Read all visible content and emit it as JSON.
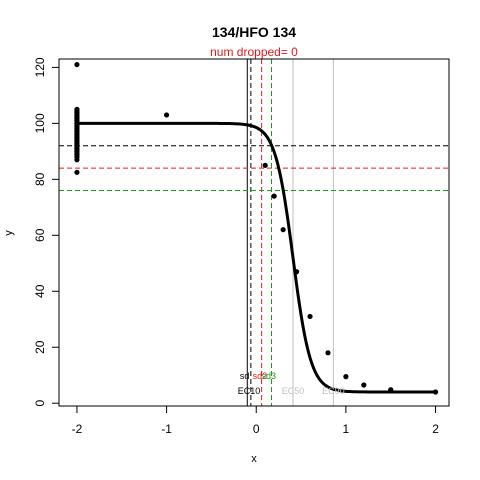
{
  "chart_data": {
    "type": "scatter",
    "title": "134/HFO 134",
    "subtitle": "num dropped= 0",
    "xlabel": "x",
    "ylabel": "y",
    "xlim": [
      -2.2,
      2.15
    ],
    "ylim": [
      -1,
      123
    ],
    "xticks": [
      -2,
      -1,
      0,
      1,
      2
    ],
    "yticks": [
      0,
      20,
      40,
      60,
      80,
      100,
      120
    ],
    "fit_curve": {
      "model": "logistic",
      "top": 100,
      "bottom": 4,
      "ec50": 0.41,
      "hill": 4.4,
      "x_range": [
        -2,
        2
      ]
    },
    "points": {
      "x": [
        -2,
        -2,
        -2,
        -2,
        -2,
        -2,
        -2,
        -2,
        -2,
        -2,
        -2,
        -2,
        -2,
        -2,
        -2,
        -2,
        -2,
        -2,
        -2,
        -2,
        -2,
        -1,
        0.1,
        0.2,
        0.3,
        0.45,
        0.6,
        0.8,
        1.0,
        1.2,
        1.5,
        2.0
      ],
      "y": [
        82.5,
        87,
        88,
        89,
        90,
        91,
        92,
        93,
        94,
        95,
        96,
        97,
        98,
        99,
        100,
        101,
        102,
        103,
        104,
        105,
        121,
        103,
        85,
        74,
        62,
        47,
        31,
        18,
        9.5,
        6.5,
        4.8,
        4
      ]
    },
    "hlines": [
      {
        "name": "sd",
        "y": 92,
        "color": "#000000"
      },
      {
        "name": "sd2",
        "y": 84,
        "color": "#e31a1c"
      },
      {
        "name": "sd3",
        "y": 76,
        "color": "#1a9d1a"
      }
    ],
    "vlines": [
      {
        "name": "ec10-a",
        "x": -0.1,
        "color": "#000000",
        "dash": false
      },
      {
        "name": "ec10-b",
        "x": -0.06,
        "color": "#000000",
        "dash": true
      },
      {
        "name": "sd2",
        "x": 0.06,
        "color": "#e31a1c",
        "dash": true
      },
      {
        "name": "sd3",
        "x": 0.17,
        "color": "#1a9d1a",
        "dash": true
      },
      {
        "name": "ec50",
        "x": 0.41,
        "color": "#bfbfbf",
        "dash": false
      },
      {
        "name": "ec90",
        "x": 0.86,
        "color": "#bfbfbf",
        "dash": false
      }
    ],
    "annotations": [
      {
        "name": "sd-label",
        "text": "sd",
        "x": -0.13,
        "y": 8.6,
        "color": "#000000"
      },
      {
        "name": "sd2-label",
        "text": "sd2",
        "x": 0.04,
        "y": 8.6,
        "color": "#e31a1c"
      },
      {
        "name": "sd3-label",
        "text": "sd3",
        "x": 0.14,
        "y": 8.6,
        "color": "#1a9d1a"
      },
      {
        "name": "ec10-label",
        "text": "EC10",
        "x": -0.08,
        "y": 3.2,
        "color": "#000000"
      },
      {
        "name": "ec50-label",
        "text": "EC50",
        "x": 0.41,
        "y": 3.2,
        "color": "#bfbfbf"
      },
      {
        "name": "ec90-label",
        "text": "EC90",
        "x": 0.86,
        "y": 3.2,
        "color": "#bfbfbf"
      }
    ]
  }
}
